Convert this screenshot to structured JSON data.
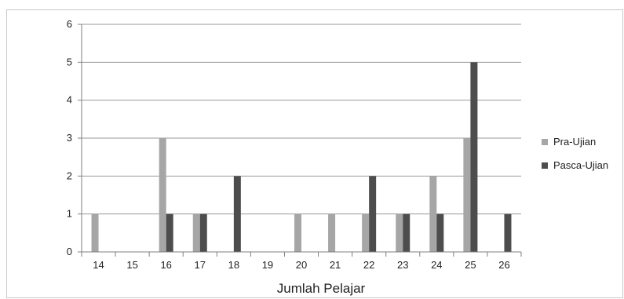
{
  "chart_data": {
    "type": "bar",
    "categories": [
      "14",
      "15",
      "16",
      "17",
      "18",
      "19",
      "20",
      "21",
      "22",
      "23",
      "24",
      "25",
      "26"
    ],
    "series": [
      {
        "name": "Pra-Ujian",
        "color": "#a6a6a6",
        "values": [
          1,
          0,
          3,
          1,
          0,
          0,
          1,
          1,
          1,
          1,
          2,
          3,
          0
        ]
      },
      {
        "name": "Pasca-Ujian",
        "color": "#4d4d4d",
        "values": [
          0,
          0,
          1,
          1,
          2,
          0,
          0,
          0,
          2,
          1,
          1,
          5,
          1
        ]
      }
    ],
    "title": "",
    "xlabel": "Jumlah Pelajar",
    "ylabel": "",
    "ylim": [
      0,
      6
    ],
    "yticks": [
      "0",
      "1",
      "2",
      "3",
      "4",
      "5",
      "6"
    ],
    "grid": true,
    "legend_position": "right"
  }
}
